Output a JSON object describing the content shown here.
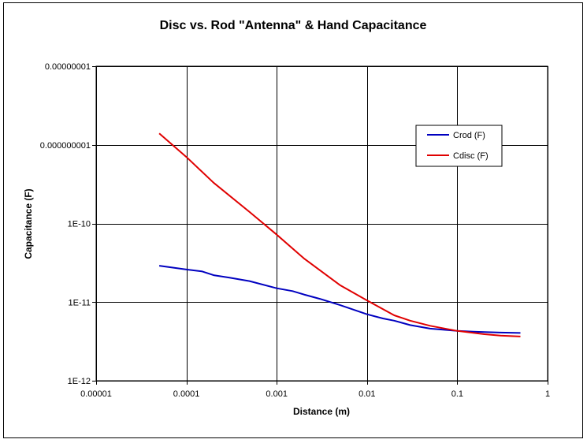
{
  "chart_data": {
    "type": "line",
    "title": "Disc vs. Rod \"Antenna\" & Hand Capacitance",
    "xlabel": "Distance (m)",
    "ylabel": "Capacitance (F)",
    "x_scale": "log",
    "y_scale": "log",
    "xlim": [
      1e-05,
      1
    ],
    "ylim": [
      1e-12,
      1e-08
    ],
    "x_ticks": [
      1e-05,
      0.0001,
      0.001,
      0.01,
      0.1,
      1
    ],
    "x_tick_labels": [
      "0.00001",
      "0.0001",
      "0.001",
      "0.01",
      "0.1",
      "1"
    ],
    "y_ticks": [
      1e-12,
      1e-11,
      1e-10,
      1e-09,
      1e-08
    ],
    "y_tick_labels": [
      "1E-12",
      "1E-11",
      "1E-10",
      "0.000000001",
      "0.00000001"
    ],
    "grid": true,
    "legend_position": "top-right",
    "series": [
      {
        "name": "Crod (F)",
        "color": "#0000c0",
        "x": [
          5e-05,
          0.0001,
          0.00015,
          0.0002,
          0.0003,
          0.0005,
          0.001,
          0.0015,
          0.002,
          0.003,
          0.005,
          0.01,
          0.015,
          0.02,
          0.03,
          0.05,
          0.1,
          0.15,
          0.2,
          0.3,
          0.5
        ],
        "y": [
          2.9e-11,
          2.6e-11,
          2.45e-11,
          2.2e-11,
          2.05e-11,
          1.85e-11,
          1.5e-11,
          1.38e-11,
          1.25e-11,
          1.1e-11,
          9.2e-12,
          7e-12,
          6.2e-12,
          5.8e-12,
          5.1e-12,
          4.6e-12,
          4.3e-12,
          4.2e-12,
          4.15e-12,
          4.1e-12,
          4.05e-12
        ]
      },
      {
        "name": "Cdisc (F)",
        "color": "#e00000",
        "x": [
          5e-05,
          0.0001,
          0.0002,
          0.0005,
          0.001,
          0.002,
          0.005,
          0.01,
          0.02,
          0.03,
          0.05,
          0.1,
          0.2,
          0.3,
          0.5
        ],
        "y": [
          1.4e-09,
          7e-10,
          3.3e-10,
          1.4e-10,
          7.2e-11,
          3.6e-11,
          1.65e-11,
          1.05e-11,
          6.8e-12,
          5.8e-12,
          5e-12,
          4.3e-12,
          3.9e-12,
          3.75e-12,
          3.65e-12
        ]
      }
    ]
  }
}
